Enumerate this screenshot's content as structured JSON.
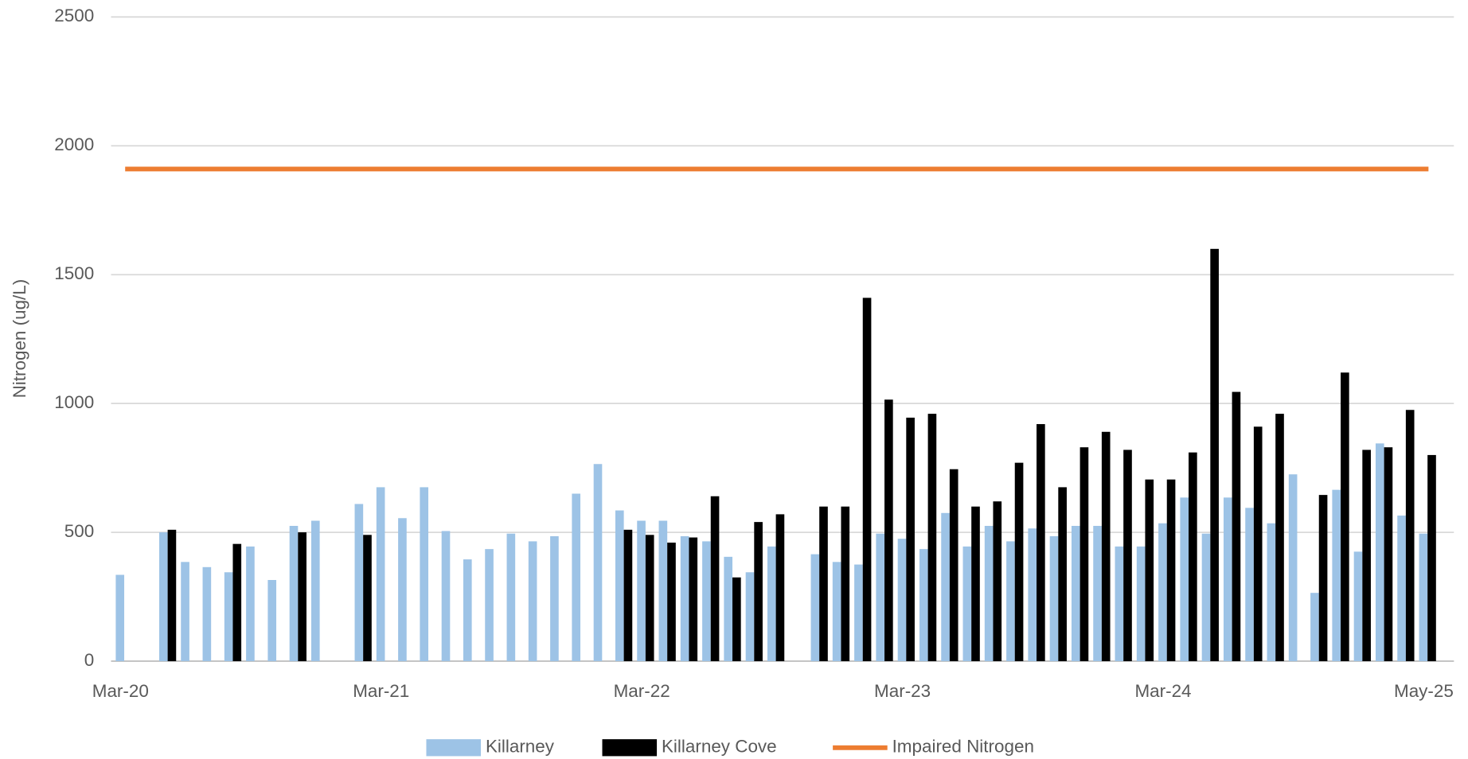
{
  "chart_data": {
    "type": "bar",
    "y_label": "Nitrogen (ug/L)",
    "categories": [
      "Mar-20",
      null,
      null,
      null,
      null,
      null,
      null,
      null,
      null,
      null,
      null,
      null,
      "Mar-21",
      null,
      null,
      null,
      null,
      null,
      null,
      null,
      null,
      null,
      null,
      null,
      "Mar-22",
      null,
      null,
      null,
      null,
      null,
      null,
      null,
      null,
      null,
      null,
      null,
      "Mar-23",
      null,
      null,
      null,
      null,
      null,
      null,
      null,
      null,
      null,
      null,
      null,
      "Mar-24",
      null,
      null,
      null,
      null,
      null,
      null,
      null,
      null,
      null,
      null,
      null,
      "May-25"
    ],
    "series": [
      {
        "name": "Killarney",
        "color": "#9dc3e6",
        "type": "bar",
        "values": [
          335,
          null,
          500,
          385,
          365,
          345,
          445,
          315,
          525,
          545,
          null,
          610,
          675,
          555,
          675,
          505,
          395,
          435,
          495,
          465,
          485,
          650,
          765,
          585,
          545,
          545,
          485,
          465,
          405,
          345,
          445,
          null,
          415,
          385,
          375,
          495,
          475,
          435,
          575,
          445,
          525,
          465,
          515,
          485,
          525,
          525,
          445,
          445,
          535,
          635,
          495,
          635,
          595,
          535,
          725,
          265,
          665,
          425,
          845,
          565,
          495
        ]
      },
      {
        "name": "Killarney Cove",
        "color": "#000000",
        "type": "bar",
        "values": [
          null,
          null,
          510,
          null,
          null,
          455,
          null,
          null,
          500,
          null,
          null,
          490,
          null,
          null,
          null,
          null,
          null,
          null,
          null,
          null,
          null,
          null,
          null,
          510,
          490,
          460,
          480,
          640,
          325,
          540,
          570,
          null,
          600,
          600,
          1410,
          1015,
          945,
          960,
          745,
          600,
          620,
          770,
          920,
          675,
          830,
          890,
          820,
          705,
          705,
          810,
          1600,
          1045,
          910,
          960,
          null,
          645,
          1120,
          820,
          830,
          975,
          800
        ]
      },
      {
        "name": "Impaired Nitrogen",
        "color": "#ed7d31",
        "type": "line",
        "values": [
          1910,
          1910,
          1910,
          1910,
          1910,
          1910,
          1910,
          1910,
          1910,
          1910,
          1910,
          1910,
          1910,
          1910,
          1910,
          1910,
          1910,
          1910,
          1910,
          1910,
          1910,
          1910,
          1910,
          1910,
          1910,
          1910,
          1910,
          1910,
          1910,
          1910,
          1910,
          1910,
          1910,
          1910,
          1910,
          1910,
          1910,
          1910,
          1910,
          1910,
          1910,
          1910,
          1910,
          1910,
          1910,
          1910,
          1910,
          1910,
          1910,
          1910,
          1910,
          1910,
          1910,
          1910,
          1910,
          1910,
          1910,
          1910,
          1910,
          1910,
          1910
        ]
      }
    ],
    "ylim": [
      0,
      2500
    ],
    "yticks": [
      0,
      500,
      1000,
      1500,
      2000,
      2500
    ],
    "grid": true,
    "legend": "bottom"
  }
}
